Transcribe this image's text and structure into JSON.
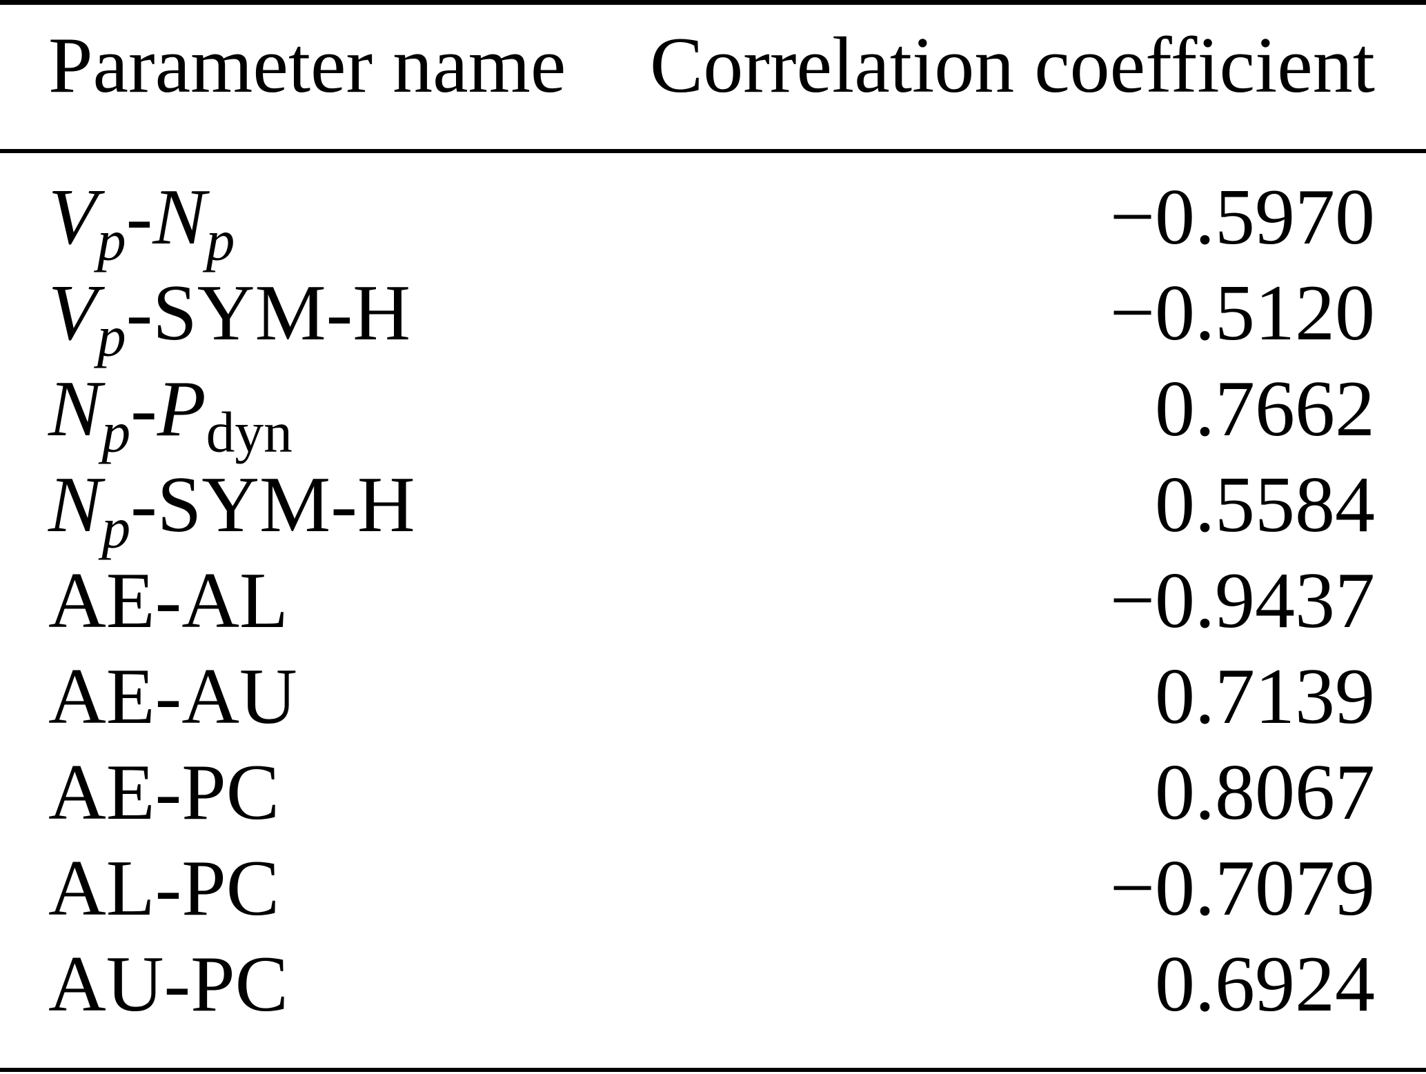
{
  "colors": {
    "text": "#000000",
    "background": "#ffffff",
    "rule": "#000000"
  },
  "table": {
    "columns": [
      {
        "label": "Parameter name"
      },
      {
        "label": "Correlation coefficient"
      }
    ],
    "rows": [
      {
        "name_parts": [
          {
            "t": "V",
            "s": "i"
          },
          {
            "t": "p",
            "s": "isub"
          },
          {
            "t": "-",
            "s": "r"
          },
          {
            "t": "N",
            "s": "i"
          },
          {
            "t": "p",
            "s": "isub"
          }
        ],
        "value": "−0.5970"
      },
      {
        "name_parts": [
          {
            "t": "V",
            "s": "i"
          },
          {
            "t": "p",
            "s": "isub"
          },
          {
            "t": "-SYM-H",
            "s": "r"
          }
        ],
        "value": "−0.5120"
      },
      {
        "name_parts": [
          {
            "t": "N",
            "s": "i"
          },
          {
            "t": "p",
            "s": "isub"
          },
          {
            "t": "-",
            "s": "r"
          },
          {
            "t": "P",
            "s": "i"
          },
          {
            "t": "dyn",
            "s": "sub"
          }
        ],
        "value": "0.7662"
      },
      {
        "name_parts": [
          {
            "t": "N",
            "s": "i"
          },
          {
            "t": "p",
            "s": "isub"
          },
          {
            "t": "-SYM-H",
            "s": "r"
          }
        ],
        "value": "0.5584"
      },
      {
        "name_parts": [
          {
            "t": "AE-AL",
            "s": "r"
          }
        ],
        "value": "−0.9437"
      },
      {
        "name_parts": [
          {
            "t": "AE-AU",
            "s": "r"
          }
        ],
        "value": "0.7139"
      },
      {
        "name_parts": [
          {
            "t": "AE-PC",
            "s": "r"
          }
        ],
        "value": "0.8067"
      },
      {
        "name_parts": [
          {
            "t": "AL-PC",
            "s": "r"
          }
        ],
        "value": "−0.7079"
      },
      {
        "name_parts": [
          {
            "t": "AU-PC",
            "s": "r"
          }
        ],
        "value": "0.6924"
      }
    ]
  }
}
